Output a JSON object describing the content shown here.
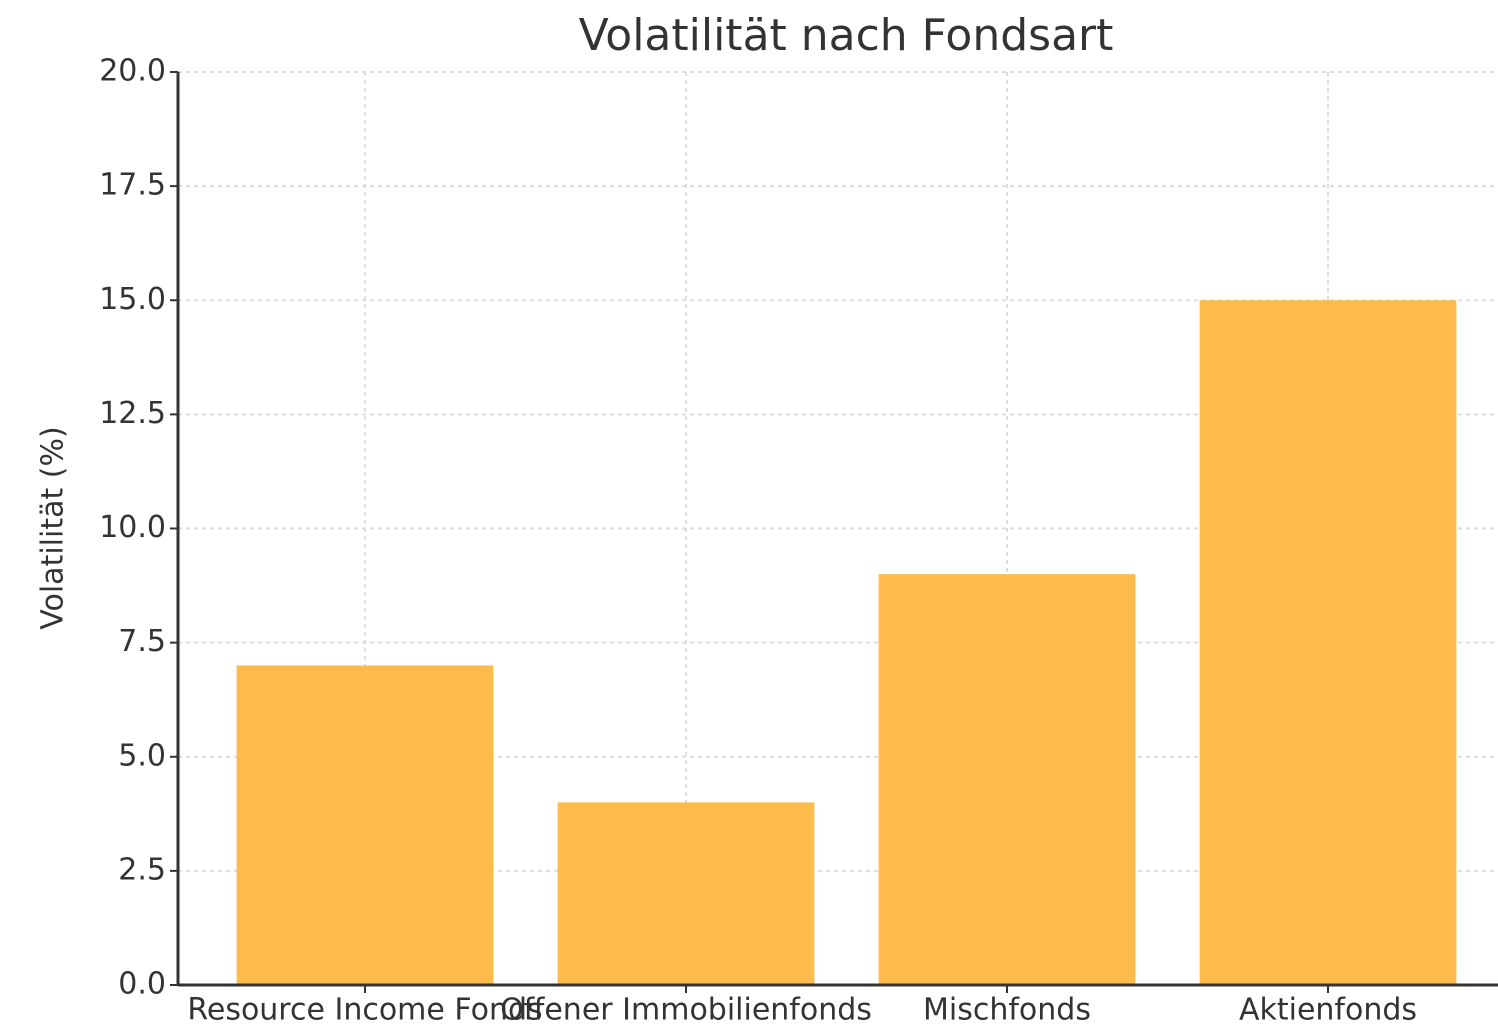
{
  "chart_data": {
    "type": "bar",
    "title": "Volatilität nach Fondsart",
    "y_label": "Volatilität (%)",
    "categories": [
      "Resource Income Fonds",
      "Offener Immobilienfonds",
      "Mischfonds",
      "Aktienfonds"
    ],
    "values": [
      7,
      4,
      9,
      15
    ],
    "color": "#fdbb4b",
    "ylim": [
      0,
      20
    ],
    "yticks": [
      {
        "value": 0,
        "label": "0.0"
      },
      2.5,
      {
        "value": 5,
        "label": "5.0"
      },
      7.5,
      {
        "value": 10,
        "label": "10.0"
      },
      12.5,
      {
        "value": 15,
        "label": "15.0"
      },
      17.5,
      {
        "value": 20,
        "label": "20.0"
      }
    ],
    "grid": true
  }
}
